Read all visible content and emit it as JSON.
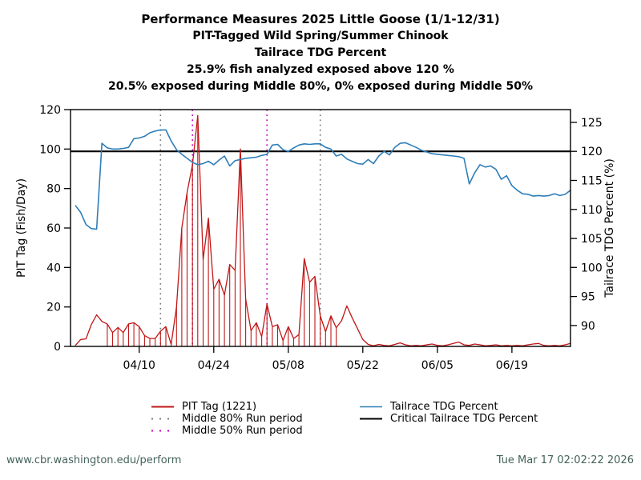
{
  "titles": {
    "line1": "Performance Measures 2025 Little Goose (1/1-12/31)",
    "line2": "PIT-Tagged Wild Spring/Summer Chinook",
    "line3": "Tailrace TDG Percent",
    "line4": "25.9% fish analyzed exposed above 120 %",
    "line5": "20.5% exposed during Middle 80%, 0% exposed during Middle 50%"
  },
  "footer": {
    "url": "www.cbr.washington.edu/perform",
    "timestamp": "Tue Mar 17 02:02:22 2026"
  },
  "colors": {
    "pit_tag": "#c01616",
    "tdg": "#2e7eb8",
    "critical": "#000000",
    "middle80": "#7a7a7a",
    "middle50": "#c400c4",
    "footer_text": "#44625a",
    "axis": "#000000"
  },
  "legend": {
    "col1": [
      {
        "label": "PIT Tag (1221)",
        "swatch": "red-line"
      },
      {
        "label": "Middle 80% Run period",
        "swatch": "gray-dotted"
      },
      {
        "label": "Middle 50% Run period",
        "swatch": "magenta-dotted"
      }
    ],
    "col2": [
      {
        "label": "Tailrace TDG Percent",
        "swatch": "blue-line"
      },
      {
        "label": "Critical Tailrace TDG Percent",
        "swatch": "black-line"
      }
    ]
  },
  "chart_data": {
    "type": "line",
    "title": "Performance Measures 2025 Little Goose (1/1-12/31)",
    "xlabel": "",
    "ylabel_left": "PIT Tag (Fish/Day)",
    "ylabel_right": "Tailrace TDG Percent (%)",
    "ylim_left": [
      0,
      120
    ],
    "yticks_left": [
      0,
      20,
      40,
      60,
      80,
      100,
      120
    ],
    "ylim_right": [
      86.4,
      127.2
    ],
    "yticks_right": [
      90,
      95,
      100,
      105,
      110,
      115,
      120,
      125
    ],
    "xticks_labeled": [
      "04/10",
      "04/24",
      "05/08",
      "05/22",
      "06/05",
      "06/19"
    ],
    "grid": false,
    "legend_position": "bottom",
    "x": [
      "03/29",
      "03/30",
      "03/31",
      "04/01",
      "04/02",
      "04/03",
      "04/04",
      "04/05",
      "04/06",
      "04/07",
      "04/08",
      "04/09",
      "04/10",
      "04/11",
      "04/12",
      "04/13",
      "04/14",
      "04/15",
      "04/16",
      "04/17",
      "04/18",
      "04/19",
      "04/20",
      "04/21",
      "04/22",
      "04/23",
      "04/24",
      "04/25",
      "04/26",
      "04/27",
      "04/28",
      "04/29",
      "04/30",
      "05/01",
      "05/02",
      "05/03",
      "05/04",
      "05/05",
      "05/06",
      "05/07",
      "05/08",
      "05/09",
      "05/10",
      "05/11",
      "05/12",
      "05/13",
      "05/14",
      "05/15",
      "05/16",
      "05/17",
      "05/18",
      "05/19",
      "05/20",
      "05/21",
      "05/22",
      "05/23",
      "05/24",
      "05/25",
      "05/26",
      "05/27",
      "05/28",
      "05/29",
      "05/30",
      "05/31",
      "06/01",
      "06/02",
      "06/03",
      "06/04",
      "06/05",
      "06/06",
      "06/07",
      "06/08",
      "06/09",
      "06/10",
      "06/11",
      "06/12",
      "06/13",
      "06/14",
      "06/15",
      "06/16",
      "06/17",
      "06/18",
      "06/19",
      "06/20",
      "06/21",
      "06/22",
      "06/23",
      "06/24",
      "06/25",
      "06/26",
      "06/27",
      "06/28",
      "06/29",
      "06/30"
    ],
    "series": [
      {
        "name": "PIT Tag (1221)",
        "axis": "left",
        "style": "line+impulses",
        "impulse_dates": [
          "04/04",
          "05/17"
        ],
        "values": [
          0.5,
          3.5,
          3.8,
          11,
          16,
          12.7,
          11.3,
          7,
          9.6,
          7,
          11.4,
          12,
          10,
          5.5,
          4,
          4,
          7.7,
          10,
          1,
          20,
          60,
          78,
          92,
          117,
          44,
          65,
          29,
          34,
          26,
          41.5,
          38.5,
          100,
          24,
          8,
          12,
          5,
          21.5,
          10,
          11,
          3,
          10,
          4,
          6,
          44.5,
          32.5,
          35.5,
          15.5,
          7.5,
          15.5,
          9.5,
          13,
          20.5,
          14.5,
          9,
          3.5,
          1,
          0.3,
          1,
          0.5,
          0.3,
          1,
          1.8,
          0.8,
          0.3,
          0.5,
          0.3,
          0.8,
          1.2,
          0.5,
          0.3,
          0.8,
          1.5,
          2.2,
          0.8,
          0.5,
          1.2,
          0.8,
          0.3,
          0.5,
          0.8,
          0.3,
          0.5,
          0.3,
          0.5,
          0.3,
          0.8,
          1.2,
          1.5,
          0.5,
          0.3,
          0.5,
          0.3,
          0.8,
          1.5
        ]
      },
      {
        "name": "Tailrace TDG Percent",
        "axis": "right",
        "style": "line",
        "values": [
          110.7,
          109.5,
          107.4,
          106.7,
          106.6,
          121.4,
          120.6,
          120.4,
          120.4,
          120.5,
          120.7,
          122.2,
          122.3,
          122.6,
          123.2,
          123.5,
          123.7,
          123.7,
          121.8,
          120.3,
          119.5,
          118.8,
          118.1,
          117.7,
          117.9,
          118.3,
          117.7,
          118.5,
          119.2,
          117.5,
          118.4,
          118.6,
          118.8,
          118.9,
          119.0,
          119.3,
          119.5,
          121.1,
          121.2,
          120.3,
          120.0,
          120.6,
          121.1,
          121.3,
          121.2,
          121.3,
          121.3,
          120.7,
          120.4,
          119.2,
          119.5,
          118.7,
          118.3,
          117.9,
          117.8,
          118.6,
          117.9,
          119.2,
          120.0,
          119.4,
          120.7,
          121.4,
          121.5,
          121.1,
          120.7,
          120.2,
          119.9,
          119.6,
          119.5,
          119.4,
          119.3,
          119.2,
          119.1,
          118.8,
          114.4,
          116.3,
          117.7,
          117.3,
          117.5,
          116.9,
          115.2,
          115.8,
          114.1,
          113.3,
          112.7,
          112.6,
          112.3,
          112.4,
          112.3,
          112.4,
          112.7,
          112.4,
          112.6,
          113.3
        ]
      }
    ],
    "critical_line": {
      "name": "Critical Tailrace TDG Percent",
      "axis": "right",
      "value": 120
    },
    "vlines": [
      {
        "name": "Middle 80% Run period",
        "dates": [
          "04/14",
          "05/14"
        ],
        "style": "dotted",
        "color_key": "middle80"
      },
      {
        "name": "Middle 50% Run period",
        "dates": [
          "04/20",
          "05/04"
        ],
        "style": "dotted",
        "color_key": "middle50"
      }
    ]
  }
}
